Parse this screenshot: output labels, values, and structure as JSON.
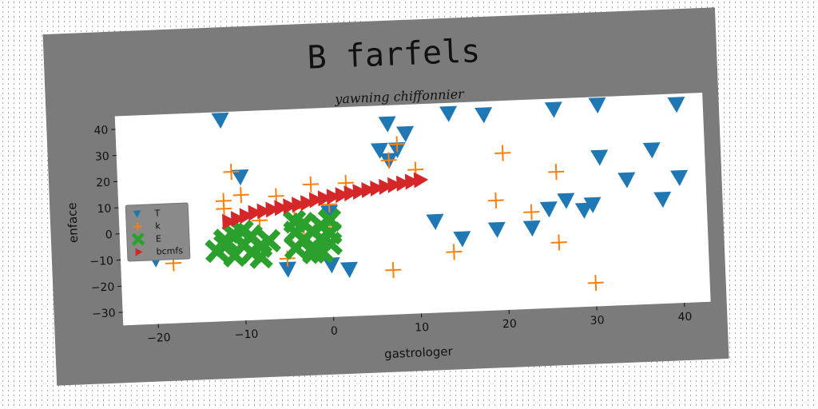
{
  "chart_data": {
    "type": "scatter",
    "title": "B farfels",
    "subtitle": "yawning chiffonnier",
    "xlabel": "gastrologer",
    "ylabel": "enface",
    "xlim": [
      -24,
      43
    ],
    "ylim": [
      -35,
      45
    ],
    "xticks": [
      -20,
      -10,
      0,
      10,
      20,
      30,
      40
    ],
    "yticks": [
      -30,
      -20,
      -10,
      0,
      10,
      20,
      30,
      40
    ],
    "grid": false,
    "legend_position": "center-left",
    "series": [
      {
        "name": "T",
        "marker": "triangle-down",
        "color": "#1f77b4",
        "points": [
          [
            -12,
            42
          ],
          [
            -20,
            -10
          ],
          [
            -10,
            20
          ],
          [
            -5,
            -16
          ],
          [
            0,
            -15
          ],
          [
            2,
            -17
          ],
          [
            0,
            5
          ],
          [
            7,
            38
          ],
          [
            9,
            34
          ],
          [
            6,
            28
          ],
          [
            7,
            24
          ],
          [
            8,
            28
          ],
          [
            12,
            0
          ],
          [
            14,
            41
          ],
          [
            18,
            40
          ],
          [
            15,
            -7
          ],
          [
            19,
            -4
          ],
          [
            23,
            -4
          ],
          [
            25,
            3
          ],
          [
            26,
            41
          ],
          [
            27,
            6
          ],
          [
            29,
            2
          ],
          [
            30,
            4
          ],
          [
            31,
            42
          ],
          [
            31,
            22
          ],
          [
            34,
            13
          ],
          [
            37,
            24
          ],
          [
            38,
            5
          ],
          [
            40,
            13
          ],
          [
            40,
            41
          ]
        ]
      },
      {
        "name": "k",
        "marker": "plus",
        "color": "#ff7f0e",
        "points": [
          [
            -11,
            22
          ],
          [
            -12,
            8
          ],
          [
            -12,
            11
          ],
          [
            -10,
            13
          ],
          [
            -8,
            3
          ],
          [
            -6,
            12
          ],
          [
            -5,
            -12
          ],
          [
            -4,
            7
          ],
          [
            -2,
            16
          ],
          [
            -3,
            0
          ],
          [
            -17,
            -6
          ],
          [
            -18,
            -12
          ],
          [
            0,
            8
          ],
          [
            2,
            16
          ],
          [
            0,
            0
          ],
          [
            7,
            -18
          ],
          [
            8,
            30
          ],
          [
            7,
            24
          ],
          [
            10,
            20
          ],
          [
            14,
            -12
          ],
          [
            19,
            7
          ],
          [
            20,
            25
          ],
          [
            23,
            2
          ],
          [
            26,
            17
          ],
          [
            26,
            -10
          ],
          [
            30,
            -26
          ]
        ]
      },
      {
        "name": "E",
        "marker": "x",
        "color": "#2ca02c",
        "points": [
          [
            -13,
            -8
          ],
          [
            -12,
            -4
          ],
          [
            -11,
            -10
          ],
          [
            -10,
            -6
          ],
          [
            -9,
            -3
          ],
          [
            -9,
            -9
          ],
          [
            -8,
            -7
          ],
          [
            -8,
            -11
          ],
          [
            -10,
            -1
          ],
          [
            -7,
            -5
          ],
          [
            -12,
            -6
          ],
          [
            -11,
            -2
          ],
          [
            -4,
            -2
          ],
          [
            -4,
            -8
          ],
          [
            -3,
            -5
          ],
          [
            -3,
            1
          ],
          [
            -2,
            -8
          ],
          [
            -2,
            -2
          ],
          [
            -1,
            0
          ],
          [
            -1,
            -5
          ],
          [
            -1,
            -10
          ],
          [
            0,
            -3
          ],
          [
            0,
            -7
          ],
          [
            0,
            2
          ],
          [
            -2,
            -10
          ],
          [
            -4,
            2
          ]
        ]
      },
      {
        "name": "bcmfs",
        "marker": "triangle-right",
        "color": "#d62728",
        "points": [
          [
            -11.5,
            3
          ],
          [
            -10.5,
            4
          ],
          [
            -9.5,
            5
          ],
          [
            -8.5,
            6
          ],
          [
            -7.5,
            6.5
          ],
          [
            -6.5,
            7
          ],
          [
            -5.5,
            7.5
          ],
          [
            -4.5,
            8
          ],
          [
            -3.5,
            8.5
          ],
          [
            -2.5,
            9
          ],
          [
            -1.5,
            10
          ],
          [
            -0.5,
            10.5
          ],
          [
            0.5,
            11
          ],
          [
            1.5,
            11.5
          ],
          [
            2.5,
            12
          ],
          [
            3.5,
            12.5
          ],
          [
            4.5,
            13
          ],
          [
            5.5,
            13.5
          ],
          [
            6.5,
            14
          ],
          [
            7.5,
            14.5
          ],
          [
            8.5,
            15
          ],
          [
            9.5,
            15.5
          ],
          [
            10.5,
            16
          ]
        ]
      }
    ]
  }
}
